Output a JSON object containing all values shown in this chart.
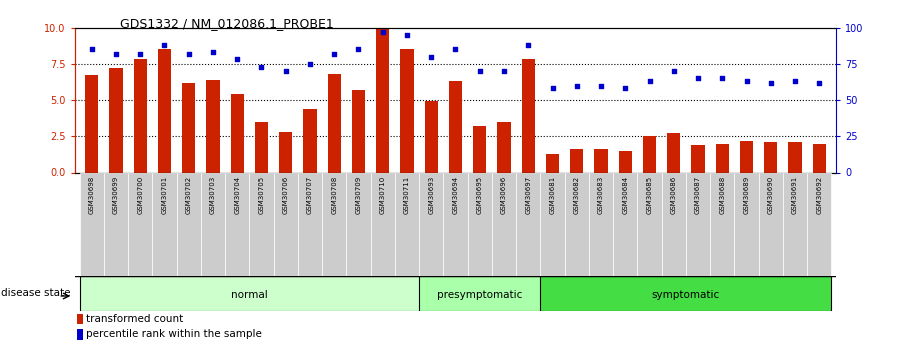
{
  "title": "GDS1332 / NM_012086.1_PROBE1",
  "samples": [
    "GSM30698",
    "GSM30699",
    "GSM30700",
    "GSM30701",
    "GSM30702",
    "GSM30703",
    "GSM30704",
    "GSM30705",
    "GSM30706",
    "GSM30707",
    "GSM30708",
    "GSM30709",
    "GSM30710",
    "GSM30711",
    "GSM30693",
    "GSM30694",
    "GSM30695",
    "GSM30696",
    "GSM30697",
    "GSM30681",
    "GSM30682",
    "GSM30683",
    "GSM30684",
    "GSM30685",
    "GSM30686",
    "GSM30687",
    "GSM30688",
    "GSM30689",
    "GSM30690",
    "GSM30691",
    "GSM30692"
  ],
  "bar_values": [
    6.7,
    7.2,
    7.8,
    8.5,
    6.2,
    6.4,
    5.4,
    3.5,
    2.8,
    4.4,
    6.8,
    5.7,
    9.9,
    8.5,
    4.9,
    6.3,
    3.2,
    3.5,
    7.8,
    1.3,
    1.6,
    1.6,
    1.5,
    2.5,
    2.7,
    1.9,
    2.0,
    2.2,
    2.1,
    2.1,
    2.0
  ],
  "dot_values": [
    85,
    82,
    82,
    88,
    82,
    83,
    78,
    73,
    70,
    75,
    82,
    85,
    97,
    95,
    80,
    85,
    70,
    70,
    88,
    58,
    60,
    60,
    58,
    63,
    70,
    65,
    65,
    63,
    62,
    63,
    62
  ],
  "groups": [
    {
      "label": "normal",
      "start": 0,
      "end": 14,
      "color": "#ccffcc"
    },
    {
      "label": "presymptomatic",
      "start": 14,
      "end": 19,
      "color": "#aaffaa"
    },
    {
      "label": "symptomatic",
      "start": 19,
      "end": 31,
      "color": "#44dd44"
    }
  ],
  "bar_color": "#cc2200",
  "dot_color": "#0000cc",
  "ylim_left": [
    0,
    10
  ],
  "ylim_right": [
    0,
    100
  ],
  "yticks_left": [
    0,
    2.5,
    5.0,
    7.5,
    10
  ],
  "yticks_right": [
    0,
    25,
    50,
    75,
    100
  ],
  "hlines": [
    2.5,
    5.0,
    7.5
  ],
  "legend_bar_label": "transformed count",
  "legend_dot_label": "percentile rank within the sample",
  "disease_state_label": "disease state",
  "tick_bg_color": "#cccccc",
  "title_fontsize": 9,
  "axis_fontsize": 7,
  "label_fontsize": 7.5
}
